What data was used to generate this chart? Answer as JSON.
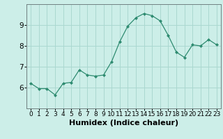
{
  "x": [
    0,
    1,
    2,
    3,
    4,
    5,
    6,
    7,
    8,
    9,
    10,
    11,
    12,
    13,
    14,
    15,
    16,
    17,
    18,
    19,
    20,
    21,
    22,
    23
  ],
  "y": [
    6.2,
    5.95,
    5.95,
    5.65,
    6.2,
    6.25,
    6.85,
    6.6,
    6.55,
    6.6,
    7.25,
    8.2,
    8.95,
    9.35,
    9.55,
    9.45,
    9.2,
    8.5,
    7.7,
    7.45,
    8.05,
    8.0,
    8.3,
    8.05
  ],
  "xlabel": "Humidex (Indice chaleur)",
  "ylim": [
    5.0,
    10.0
  ],
  "xlim": [
    -0.5,
    23.5
  ],
  "yticks": [
    6,
    7,
    8,
    9
  ],
  "xticks": [
    0,
    1,
    2,
    3,
    4,
    5,
    6,
    7,
    8,
    9,
    10,
    11,
    12,
    13,
    14,
    15,
    16,
    17,
    18,
    19,
    20,
    21,
    22,
    23
  ],
  "line_color": "#2e8b70",
  "marker_color": "#2e8b70",
  "bg_color": "#cceee8",
  "grid_color": "#aad8d0",
  "axis_color": "#708080",
  "xlabel_fontsize": 8,
  "tick_fontsize": 6.5,
  "ytick_fontsize": 7.5
}
